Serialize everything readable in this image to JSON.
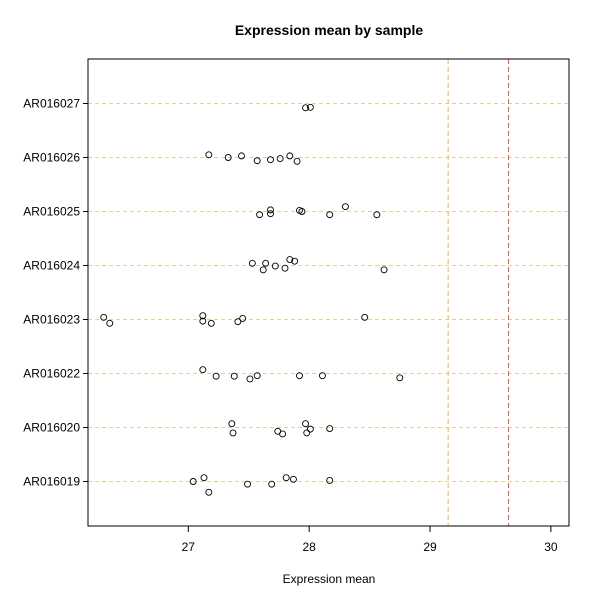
{
  "chart_data": {
    "type": "scatter",
    "title": "Expression mean by sample",
    "xlabel": "Expression mean",
    "ylabel": "",
    "xlim": [
      26.17,
      30.15
    ],
    "x_ticks": [
      27,
      28,
      29,
      30
    ],
    "x_tick_labels": [
      "27",
      "28",
      "29",
      "30"
    ],
    "categories": [
      "AR016019",
      "AR016020",
      "AR016022",
      "AR016023",
      "AR016024",
      "AR016025",
      "AR016026",
      "AR016027"
    ],
    "grid": "horizontal dashed lines at each category",
    "reference_lines": [
      {
        "x": 29.15,
        "color": "#f5b041",
        "style": "dashed"
      },
      {
        "x": 29.65,
        "color": "#d9534f",
        "style": "dashed"
      }
    ],
    "colors": {
      "grid": "#e6cf9a",
      "points": "#000000",
      "axes": "#000000"
    },
    "series": [
      {
        "category": "AR016019",
        "points": [
          {
            "x": 27.04,
            "y": 0.0
          },
          {
            "x": 27.13,
            "y": 0.07
          },
          {
            "x": 27.17,
            "y": -0.2
          },
          {
            "x": 27.49,
            "y": -0.05
          },
          {
            "x": 27.69,
            "y": -0.05
          },
          {
            "x": 27.81,
            "y": 0.07
          },
          {
            "x": 27.87,
            "y": 0.04
          },
          {
            "x": 28.17,
            "y": 0.02
          }
        ]
      },
      {
        "category": "AR016020",
        "points": [
          {
            "x": 27.36,
            "y": 0.07
          },
          {
            "x": 27.37,
            "y": -0.1
          },
          {
            "x": 27.74,
            "y": -0.07
          },
          {
            "x": 27.78,
            "y": -0.12
          },
          {
            "x": 27.97,
            "y": 0.07
          },
          {
            "x": 27.98,
            "y": -0.1
          },
          {
            "x": 28.01,
            "y": -0.03
          },
          {
            "x": 28.17,
            "y": -0.02
          }
        ]
      },
      {
        "category": "AR016022",
        "points": [
          {
            "x": 27.12,
            "y": 0.07
          },
          {
            "x": 27.23,
            "y": -0.05
          },
          {
            "x": 27.38,
            "y": -0.05
          },
          {
            "x": 27.51,
            "y": -0.1
          },
          {
            "x": 27.57,
            "y": -0.04
          },
          {
            "x": 27.92,
            "y": -0.04
          },
          {
            "x": 28.11,
            "y": -0.04
          },
          {
            "x": 28.75,
            "y": -0.08
          }
        ]
      },
      {
        "category": "AR016023",
        "points": [
          {
            "x": 26.3,
            "y": 0.04
          },
          {
            "x": 26.35,
            "y": -0.07
          },
          {
            "x": 27.12,
            "y": 0.07
          },
          {
            "x": 27.12,
            "y": -0.03
          },
          {
            "x": 27.19,
            "y": -0.07
          },
          {
            "x": 27.41,
            "y": -0.04
          },
          {
            "x": 27.45,
            "y": 0.02
          },
          {
            "x": 28.46,
            "y": 0.04
          }
        ]
      },
      {
        "category": "AR016024",
        "points": [
          {
            "x": 27.53,
            "y": 0.04
          },
          {
            "x": 27.62,
            "y": -0.08
          },
          {
            "x": 27.64,
            "y": 0.04
          },
          {
            "x": 27.72,
            "y": -0.01
          },
          {
            "x": 27.8,
            "y": -0.05
          },
          {
            "x": 27.84,
            "y": 0.11
          },
          {
            "x": 27.88,
            "y": 0.08
          },
          {
            "x": 28.62,
            "y": -0.08
          }
        ]
      },
      {
        "category": "AR016025",
        "points": [
          {
            "x": 27.59,
            "y": -0.06
          },
          {
            "x": 27.68,
            "y": 0.03
          },
          {
            "x": 27.68,
            "y": -0.04
          },
          {
            "x": 27.92,
            "y": 0.02
          },
          {
            "x": 27.94,
            "y": 0.0
          },
          {
            "x": 28.17,
            "y": -0.06
          },
          {
            "x": 28.3,
            "y": 0.09
          },
          {
            "x": 28.56,
            "y": -0.06
          }
        ]
      },
      {
        "category": "AR016026",
        "points": [
          {
            "x": 27.17,
            "y": 0.05
          },
          {
            "x": 27.33,
            "y": 0.0
          },
          {
            "x": 27.44,
            "y": 0.03
          },
          {
            "x": 27.57,
            "y": -0.06
          },
          {
            "x": 27.68,
            "y": -0.04
          },
          {
            "x": 27.76,
            "y": -0.02
          },
          {
            "x": 27.84,
            "y": 0.03
          },
          {
            "x": 27.9,
            "y": -0.07
          }
        ]
      },
      {
        "category": "AR016027",
        "points": [
          {
            "x": 27.97,
            "y": -0.08
          },
          {
            "x": 28.01,
            "y": -0.07
          }
        ]
      }
    ]
  }
}
